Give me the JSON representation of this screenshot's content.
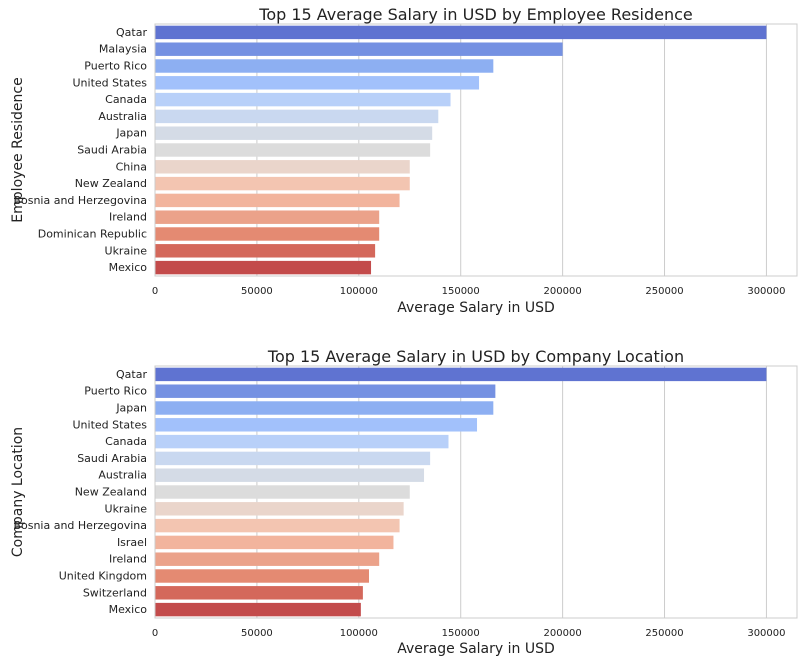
{
  "chart_data": [
    {
      "type": "bar",
      "orientation": "horizontal",
      "title": "Top 15 Average Salary in USD by Employee Residence",
      "xlabel": "Average Salary in USD",
      "ylabel": "Employee Residence",
      "xlim": [
        0,
        315000
      ],
      "xticks": [
        0,
        50000,
        100000,
        150000,
        200000,
        250000,
        300000
      ],
      "grid": "vertical",
      "palette": "coolwarm",
      "categories": [
        "Qatar",
        "Malaysia",
        "Puerto Rico",
        "United States",
        "Canada",
        "Australia",
        "Japan",
        "Saudi Arabia",
        "China",
        "New Zealand",
        "Bosnia and Herzegovina",
        "Ireland",
        "Dominican Republic",
        "Ukraine",
        "Mexico"
      ],
      "values": [
        300000,
        200000,
        166000,
        159000,
        145000,
        139000,
        136000,
        135000,
        125000,
        125000,
        120000,
        110000,
        110000,
        108000,
        106000
      ],
      "colors": [
        "#5f73d1",
        "#7591e2",
        "#8daff2",
        "#a2c1fb",
        "#b8d0f9",
        "#c9d8f0",
        "#d4dbe6",
        "#dcdcdc",
        "#ead5cb",
        "#f3c5b1",
        "#f2b49d",
        "#eba28a",
        "#e48a72",
        "#d4685b",
        "#c34b4b"
      ]
    },
    {
      "type": "bar",
      "orientation": "horizontal",
      "title": "Top 15 Average Salary in USD by Company Location",
      "xlabel": "Average Salary in USD",
      "ylabel": "Company Location",
      "xlim": [
        0,
        315000
      ],
      "xticks": [
        0,
        50000,
        100000,
        150000,
        200000,
        250000,
        300000
      ],
      "grid": "vertical",
      "palette": "coolwarm",
      "categories": [
        "Qatar",
        "Puerto Rico",
        "Japan",
        "United States",
        "Canada",
        "Saudi Arabia",
        "Australia",
        "New Zealand",
        "Ukraine",
        "Bosnia and Herzegovina",
        "Israel",
        "Ireland",
        "United Kingdom",
        "Switzerland",
        "Mexico"
      ],
      "values": [
        300000,
        167000,
        166000,
        158000,
        144000,
        135000,
        132000,
        125000,
        122000,
        120000,
        117000,
        110000,
        105000,
        102000,
        101000
      ],
      "colors": [
        "#5f73d1",
        "#7591e2",
        "#8daff2",
        "#a2c1fb",
        "#b8d0f9",
        "#c9d8f0",
        "#d4dbe6",
        "#dcdcdc",
        "#ead5cb",
        "#f3c5b1",
        "#f2b49d",
        "#eba28a",
        "#e48a72",
        "#d4685b",
        "#c34b4b"
      ]
    }
  ]
}
